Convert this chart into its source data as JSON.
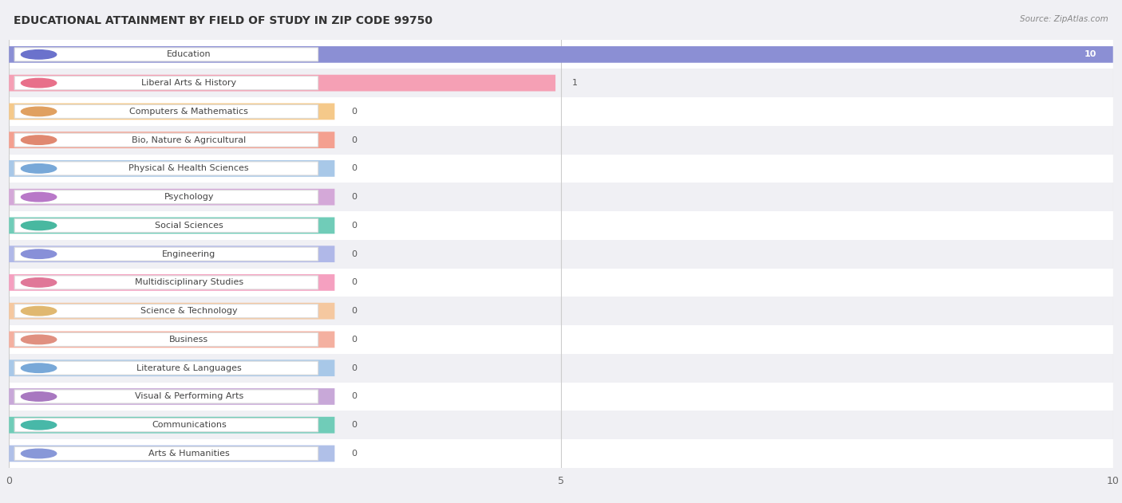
{
  "title": "EDUCATIONAL ATTAINMENT BY FIELD OF STUDY IN ZIP CODE 99750",
  "source": "Source: ZipAtlas.com",
  "categories": [
    "Education",
    "Liberal Arts & History",
    "Computers & Mathematics",
    "Bio, Nature & Agricultural",
    "Physical & Health Sciences",
    "Psychology",
    "Social Sciences",
    "Engineering",
    "Multidisciplinary Studies",
    "Science & Technology",
    "Business",
    "Literature & Languages",
    "Visual & Performing Arts",
    "Communications",
    "Arts & Humanities"
  ],
  "values": [
    10,
    1,
    0,
    0,
    0,
    0,
    0,
    0,
    0,
    0,
    0,
    0,
    0,
    0,
    0
  ],
  "bar_colors": [
    "#8B8FD4",
    "#F5A0B5",
    "#F5C98A",
    "#F4A090",
    "#A8C8E8",
    "#D4A8D8",
    "#70CCB8",
    "#B0B8E8",
    "#F5A0C0",
    "#F5C8A0",
    "#F4B0A0",
    "#A8C8E8",
    "#C8A8D8",
    "#70CCB8",
    "#B0C0E8"
  ],
  "icon_colors": [
    "#6B72CC",
    "#E8708A",
    "#E0A060",
    "#E08870",
    "#78A8D8",
    "#B878C8",
    "#48B8A0",
    "#8890D8",
    "#E07898",
    "#E0B870",
    "#E09080",
    "#78A8D8",
    "#A878C0",
    "#48B8A8",
    "#8898D8"
  ],
  "xlim": [
    0,
    10
  ],
  "xticks": [
    0,
    5,
    10
  ],
  "bg_color": "#f0f0f4",
  "row_colors": [
    "#ffffff",
    "#f0f0f4"
  ],
  "title_fontsize": 10,
  "label_fontsize": 8,
  "value_fontsize": 8
}
